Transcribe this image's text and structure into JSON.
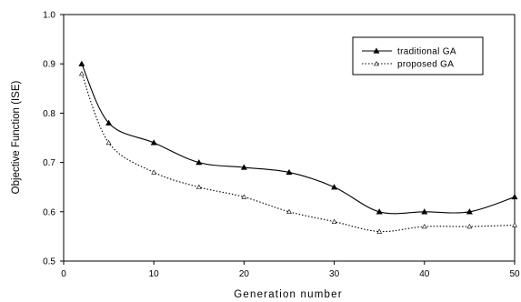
{
  "chart_data": {
    "type": "line",
    "xlabel": "Generation number",
    "ylabel": "Objective Function (ISE)",
    "xlim": [
      0,
      50
    ],
    "ylim": [
      0.5,
      1.0
    ],
    "xticks": [
      0,
      10,
      20,
      30,
      40,
      50
    ],
    "yticks": [
      "0.5",
      "0.6",
      "0.7",
      "0.8",
      "0.9",
      "1.0"
    ],
    "grid": false,
    "legend_position": "top-right",
    "series": [
      {
        "name": "traditional GA",
        "line_style": "solid",
        "marker": "filled-triangle",
        "x": [
          2,
          5,
          10,
          15,
          20,
          25,
          30,
          35,
          40,
          45,
          50
        ],
        "y": [
          0.9,
          0.78,
          0.74,
          0.7,
          0.69,
          0.68,
          0.65,
          0.6,
          0.6,
          0.6,
          0.63
        ]
      },
      {
        "name": "proposed GA",
        "line_style": "dotted",
        "marker": "open-triangle",
        "x": [
          2,
          5,
          10,
          15,
          20,
          25,
          30,
          35,
          40,
          45,
          50
        ],
        "y": [
          0.88,
          0.74,
          0.68,
          0.65,
          0.63,
          0.6,
          0.58,
          0.56,
          0.57,
          0.57,
          0.573
        ]
      }
    ]
  }
}
